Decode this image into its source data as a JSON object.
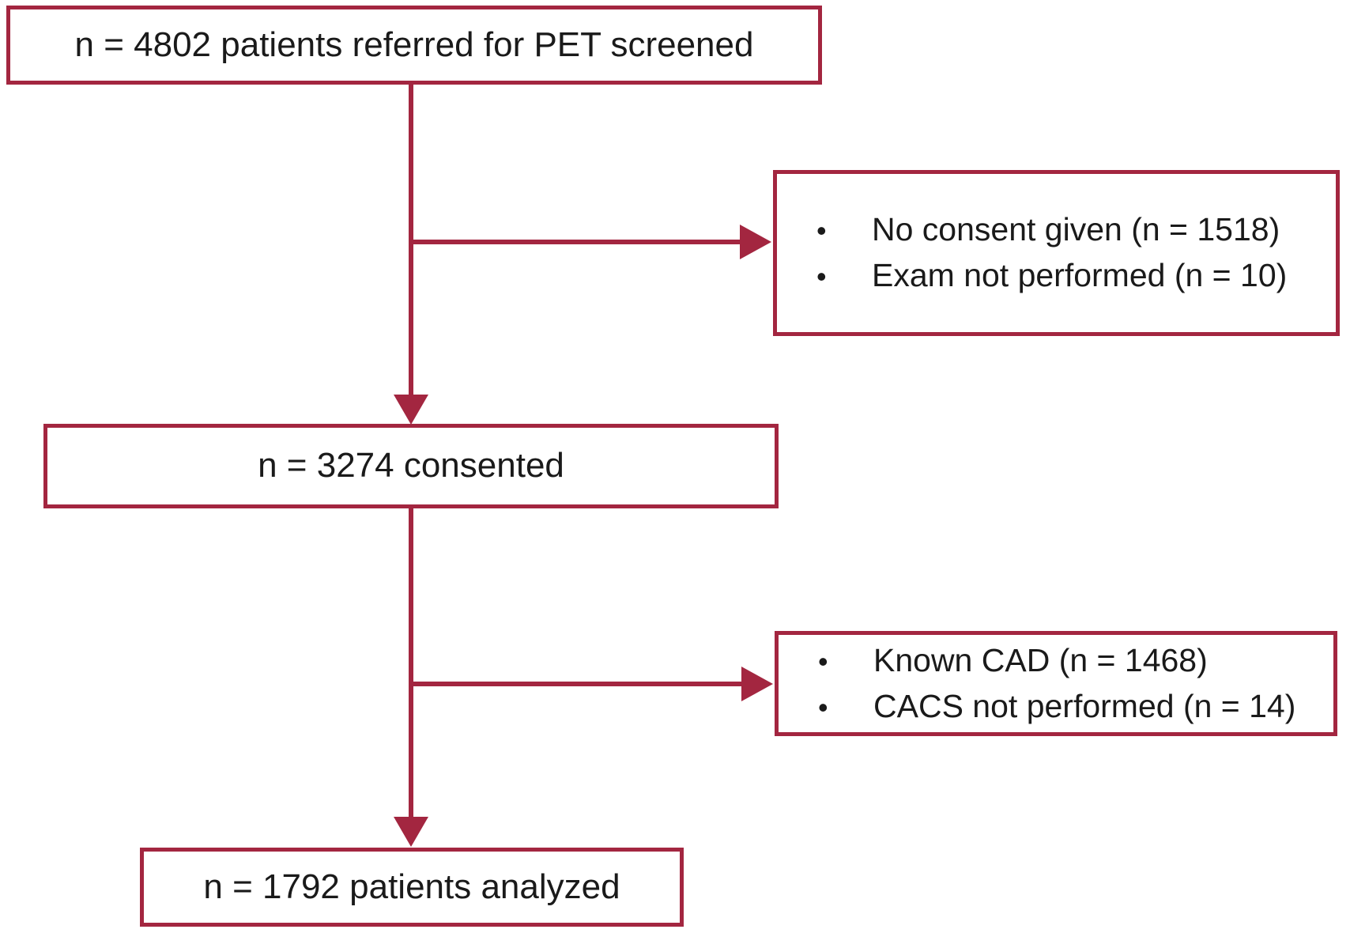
{
  "figure": {
    "type": "patient-flowchart",
    "accent_color": "#a32640",
    "text_color": "#1a1a1a",
    "nodes": {
      "screened": {
        "label": "n = 4802 patients referred for PET screened"
      },
      "consented": {
        "label": "n = 3274 consented"
      },
      "analyzed": {
        "label": "n = 1792 patients analyzed"
      },
      "exclusion_consent": {
        "bullet": "•",
        "items": [
          "No consent given (n = 1518)",
          "Exam not performed (n = 10)"
        ]
      },
      "exclusion_cad": {
        "bullet": "•",
        "items": [
          "Known CAD (n = 1468)",
          "CACS not performed (n = 14)"
        ]
      }
    }
  }
}
